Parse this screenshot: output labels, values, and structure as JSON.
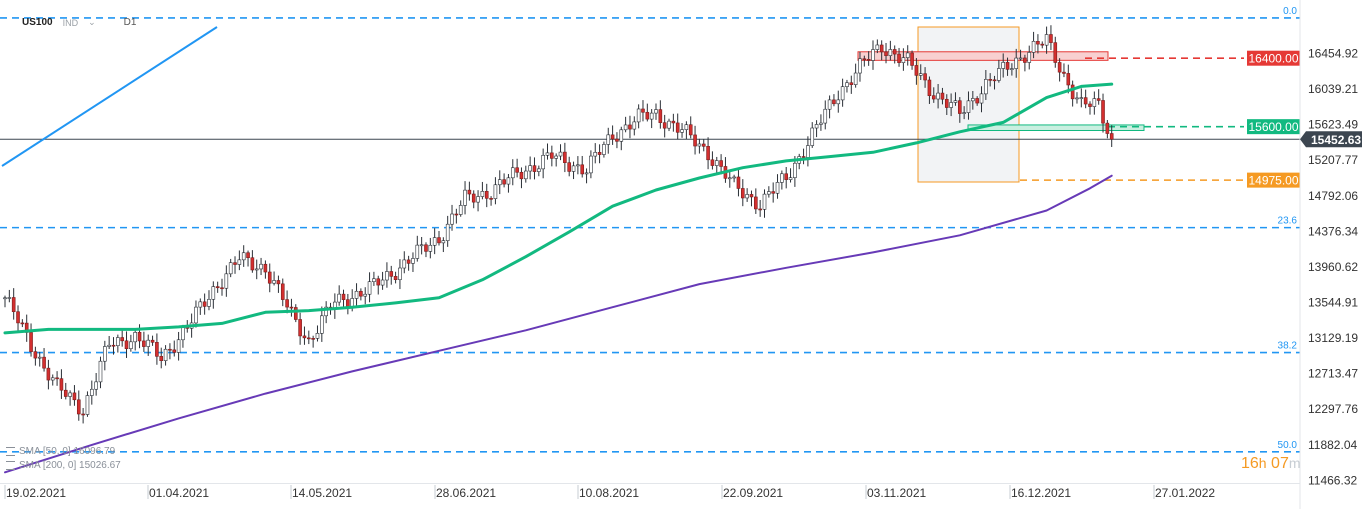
{
  "header": {
    "symbol": "US100",
    "source": "IND",
    "timeframe": "D1"
  },
  "indicators": [
    {
      "label": "SMA  [50,  0]  16096.79",
      "color": "#12b980"
    },
    {
      "label": "SMA  [200,  0]  15026.67",
      "color": "#673ab7"
    }
  ],
  "timer": {
    "hours": "16",
    "h_unit": "h",
    "minutes": "07",
    "m_unit": "m"
  },
  "current_price": "15452.63",
  "chart_data": {
    "type": "candlestick",
    "symbol": "US100",
    "timeframe": "D1",
    "y_ticks": [
      "16454.92",
      "16039.21",
      "15623.49",
      "15207.77",
      "14792.06",
      "14376.34",
      "13960.62",
      "13544.91",
      "13129.19",
      "12713.47",
      "12297.76",
      "11882.04",
      "11466.32"
    ],
    "ylim": [
      11466.32,
      16870.64
    ],
    "x_ticks": [
      "19.02.2021",
      "01.04.2021",
      "14.05.2021",
      "28.06.2021",
      "10.08.2021",
      "22.09.2021",
      "03.11.2021",
      "16.12.2021",
      "27.01.2022"
    ],
    "fib_levels": [
      {
        "label": "0.0",
        "price": 16870.64
      },
      {
        "label": "23.6",
        "price": 14420
      },
      {
        "label": "38.2",
        "price": 12960
      },
      {
        "label": "50.0",
        "price": 11800
      }
    ],
    "horizontal_levels": [
      {
        "label": "16400.00",
        "price": 16400,
        "color": "#e53935"
      },
      {
        "label": "15600.00",
        "price": 15600,
        "color": "#12b980"
      },
      {
        "label": "14975.00",
        "price": 14975,
        "color": "#f59a23"
      }
    ],
    "zones": [
      {
        "price_low": 16375,
        "price_high": 16475,
        "color": "#e53935"
      },
      {
        "price_low": 15555,
        "price_high": 15620,
        "color": "#12b980"
      }
    ],
    "last_price": 15452.63,
    "series": [
      {
        "name": "SMA [50, 0]",
        "last": 16096.79,
        "color": "#12b980",
        "points": [
          [
            0,
            13190
          ],
          [
            10,
            13230
          ],
          [
            20,
            13230
          ],
          [
            30,
            13230
          ],
          [
            40,
            13260
          ],
          [
            50,
            13300
          ],
          [
            60,
            13430
          ],
          [
            70,
            13450
          ],
          [
            80,
            13490
          ],
          [
            90,
            13540
          ],
          [
            100,
            13600
          ],
          [
            110,
            13810
          ],
          [
            120,
            14080
          ],
          [
            130,
            14370
          ],
          [
            140,
            14670
          ],
          [
            150,
            14860
          ],
          [
            160,
            15000
          ],
          [
            170,
            15120
          ],
          [
            180,
            15200
          ],
          [
            190,
            15250
          ],
          [
            200,
            15300
          ],
          [
            210,
            15410
          ],
          [
            220,
            15540
          ],
          [
            230,
            15650
          ],
          [
            240,
            15940
          ],
          [
            248,
            16070
          ],
          [
            255,
            16096.79
          ]
        ]
      },
      {
        "name": "SMA [200, 0]",
        "last": 15026.67,
        "color": "#673ab7",
        "points": [
          [
            0,
            11560
          ],
          [
            20,
            11880
          ],
          [
            40,
            12190
          ],
          [
            60,
            12480
          ],
          [
            80,
            12740
          ],
          [
            100,
            12980
          ],
          [
            120,
            13220
          ],
          [
            140,
            13490
          ],
          [
            160,
            13760
          ],
          [
            180,
            13950
          ],
          [
            200,
            14130
          ],
          [
            220,
            14330
          ],
          [
            240,
            14620
          ],
          [
            250,
            14880
          ],
          [
            255,
            15026.67
          ]
        ]
      }
    ]
  }
}
